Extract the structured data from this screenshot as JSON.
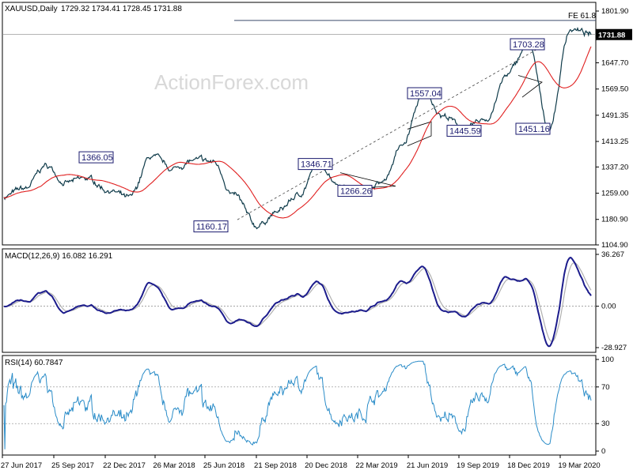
{
  "main": {
    "header": {
      "symbol": "XAUUSD,Daily",
      "ohlc": "1729.32 1734.41 1728.45 1731.88"
    },
    "watermark": "ActionForex.com",
    "fe_label": "FE 61.8",
    "last_price": "1731.88",
    "y_ticks": [
      "1801.90",
      "1724.80",
      "1647.70",
      "1569.50",
      "1491.35",
      "1413.25",
      "1337.20",
      "1259.00",
      "1180.90",
      "1104.90"
    ],
    "annotations": [
      {
        "text": "1366.05"
      },
      {
        "text": "1160.17"
      },
      {
        "text": "1346.71"
      },
      {
        "text": "1266.26"
      },
      {
        "text": "1557.04"
      },
      {
        "text": "1445.59"
      },
      {
        "text": "1703.28"
      },
      {
        "text": "1451.16"
      }
    ]
  },
  "macd": {
    "label": "MACD(12,26,9) 16.082 16.291",
    "y_ticks": [
      "36.267",
      "0.00",
      "-28.927"
    ]
  },
  "rsi": {
    "label": "RSI(14) 60.7847",
    "y_ticks": [
      "100",
      "70",
      "30",
      "0"
    ]
  },
  "x_ticks": [
    "27 Jun 2017",
    "25 Sep 2017",
    "22 Dec 2017",
    "26 Mar 2018",
    "25 Jun 2018",
    "21 Sep 2018",
    "20 Dec 2018",
    "22 Mar 2019",
    "21 Jun 2019",
    "19 Sep 2019",
    "18 Dec 2019",
    "19 Mar 2020"
  ],
  "colors": {
    "price": "#0f3b4a",
    "ma": "#e02020",
    "macd": "#1c1c8c",
    "signal": "#b0b0b0",
    "rsi": "#2a8cc8",
    "annotation_border": "#1a1a6e"
  },
  "chart_data": [
    {
      "type": "line",
      "title": "XAUUSD,Daily",
      "y_range": [
        1104.9,
        1801.9
      ],
      "anchors": {
        "dates": [
          "27 Jun 2017",
          "01 Aug 2017",
          "04 Sep 2017",
          "25 Sep 2017",
          "15 Oct 2017",
          "25 Oct 2017",
          "12 Dec 2017",
          "25 Jan 2018",
          "14 Feb 2018",
          "26 Mar 2018",
          "11 Apr 2018",
          "25 Jun 2018",
          "16 Aug 2018",
          "21 Sep 2018",
          "20 Dec 2018",
          "20 Feb 2019",
          "22 Mar 2019",
          "22 Apr 2019",
          "03 Jun 2019",
          "21 Jun 2019",
          "04 Sep 2019",
          "01 Oct 2019",
          "12 Nov 2019",
          "18 Dec 2019",
          "08 Jan 2020",
          "24 Feb 2020",
          "19 Mar 2020",
          "14 Apr 2020",
          "Last"
        ],
        "values": [
          1250,
          1270,
          1340,
          1290,
          1300,
          1270,
          1240,
          1366,
          1330,
          1355,
          1350,
          1250,
          1160,
          1200,
          1250,
          1346,
          1290,
          1266,
          1290,
          1400,
          1557,
          1490,
          1445,
          1480,
          1610,
          1703,
          1451,
          1750,
          1731.88
        ]
      },
      "moving_average": "red line",
      "horizontal_level": {
        "label": "FE 61.8",
        "value": 1774
      },
      "last_price": 1731.88
    },
    {
      "type": "line",
      "title": "MACD(12,26,9) 16.082 16.291",
      "y_range": [
        -28.927,
        36.267
      ],
      "zero_line": 0
    },
    {
      "type": "line",
      "title": "RSI(14) 60.7847",
      "y_range": [
        0,
        100
      ],
      "levels": [
        70,
        30
      ]
    }
  ]
}
